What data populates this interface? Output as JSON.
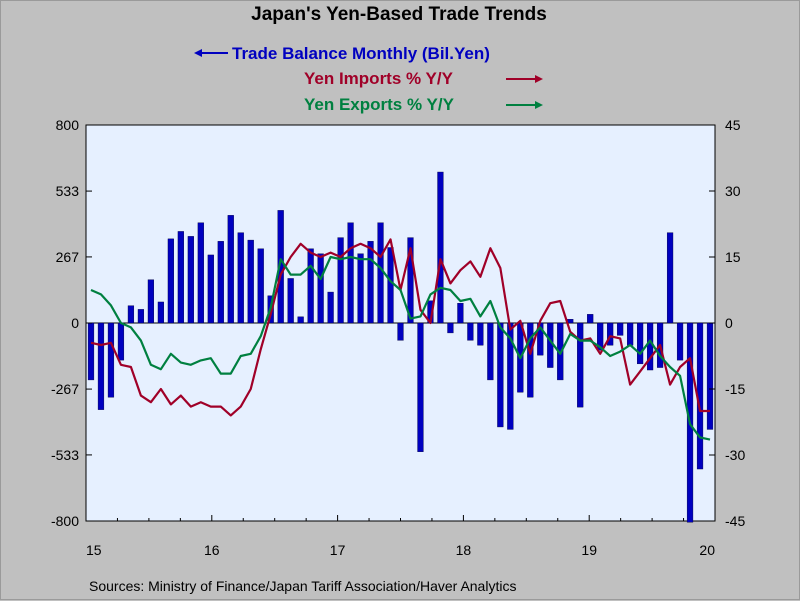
{
  "chart_data": {
    "type": "bar+line",
    "title": "Japan's Yen-Based Trade Trends",
    "source": "Sources:  Ministry of Finance/Japan Tariff Association/Haver Analytics",
    "x_tick_labels": [
      "15",
      "16",
      "17",
      "18",
      "19",
      "20"
    ],
    "x_range": [
      2015.0,
      2020.0
    ],
    "left_axis": {
      "range": [
        -800,
        800
      ],
      "ticks": [
        -800,
        -533,
        -267,
        0,
        267,
        533,
        800
      ]
    },
    "right_axis": {
      "range": [
        -45,
        45
      ],
      "ticks": [
        -45,
        -30,
        -15,
        0,
        15,
        30,
        45
      ]
    },
    "colors": {
      "balance": "#0000c0",
      "imports": "#a00028",
      "exports": "#008040",
      "plot_bg": "#e6f0ff"
    },
    "series": [
      {
        "name": "Trade Balance Monthly (Bil.Yen)",
        "key": "balance",
        "axis": "left",
        "kind": "bar",
        "legend_arrow": "left",
        "values": [
          -230,
          -350,
          -300,
          -150,
          70,
          55,
          175,
          85,
          340,
          370,
          350,
          405,
          275,
          330,
          435,
          365,
          335,
          300,
          110,
          455,
          180,
          25,
          300,
          280,
          125,
          345,
          405,
          280,
          330,
          405,
          305,
          -70,
          345,
          -520,
          90,
          610,
          -40,
          80,
          -70,
          -90,
          -230,
          -420,
          -430,
          -280,
          -300,
          -130,
          -180,
          -230,
          15,
          -340,
          35,
          -110,
          -90,
          -50,
          -90,
          -165,
          -190,
          -180,
          365,
          -150,
          -805,
          -590,
          -430
        ]
      },
      {
        "name": "Yen Imports % Y/Y",
        "key": "imports",
        "axis": "right",
        "kind": "line",
        "legend_arrow": "right",
        "values": [
          -4.5,
          -5,
          -4.5,
          -9.5,
          -10,
          -16.5,
          -18,
          -15,
          -18.5,
          -16.5,
          -19,
          -18,
          -19,
          -19,
          -21,
          -19,
          -15,
          -6,
          2,
          11,
          15,
          18,
          16,
          15,
          16,
          15,
          17,
          18,
          17,
          15,
          19,
          7.5,
          17,
          3,
          0,
          14.5,
          9,
          12,
          14,
          10.5,
          17,
          12.5,
          -1.5,
          0.5,
          -7,
          0.5,
          4.5,
          5,
          -2,
          -4,
          -3.5,
          -7,
          -3,
          -3.5,
          -14,
          -11,
          -8,
          -5,
          -14,
          -10,
          -8,
          -20,
          -20
        ]
      },
      {
        "name": "Yen Exports % Y/Y",
        "key": "exports",
        "axis": "right",
        "kind": "line",
        "legend_arrow": "right",
        "values": [
          7.5,
          6.5,
          4,
          0,
          -1,
          -4,
          -9.5,
          -10.5,
          -7,
          -9,
          -9.5,
          -8.5,
          -8,
          -11.5,
          -11.5,
          -7.5,
          -7,
          -3,
          3.5,
          14.5,
          11,
          11,
          13,
          10,
          15,
          14.5,
          15,
          14.5,
          14.5,
          12.5,
          9.5,
          7.5,
          1,
          1.5,
          6.5,
          8,
          7.5,
          5,
          5.5,
          1.5,
          5,
          -1,
          -3.5,
          -8,
          -3.5,
          -1,
          -4,
          -7,
          -2.5,
          -4,
          -4,
          -5.5,
          -7.5,
          -6.5,
          -5,
          -7,
          -4,
          -7.5,
          -10,
          -12,
          -23,
          -26,
          -26.5
        ]
      }
    ]
  }
}
